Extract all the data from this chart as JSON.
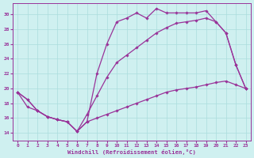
{
  "xlabel": "Windchill (Refroidissement éolien,°C)",
  "background_color": "#cff0f0",
  "grid_color": "#aadddd",
  "line_color": "#993399",
  "xlim": [
    -0.5,
    23.5
  ],
  "ylim": [
    13.0,
    31.5
  ],
  "yticks": [
    14,
    16,
    18,
    20,
    22,
    24,
    26,
    28,
    30
  ],
  "xticks": [
    0,
    1,
    2,
    3,
    4,
    5,
    6,
    7,
    8,
    9,
    10,
    11,
    12,
    13,
    14,
    15,
    16,
    17,
    18,
    19,
    20,
    21,
    22,
    23
  ],
  "series1_x": [
    0,
    1,
    2,
    3,
    4,
    5,
    6,
    7,
    8,
    9,
    10,
    11,
    12,
    13,
    14,
    15,
    16,
    17,
    18,
    19,
    20,
    21,
    22,
    23
  ],
  "series1_y": [
    19.5,
    18.5,
    17.0,
    16.2,
    15.8,
    15.5,
    14.2,
    15.5,
    22.0,
    26.0,
    29.0,
    29.5,
    30.2,
    29.5,
    30.8,
    30.2,
    30.2,
    30.2,
    30.2,
    30.5,
    29.0,
    27.5,
    23.2,
    20.0
  ],
  "series2_x": [
    0,
    1,
    2,
    3,
    4,
    5,
    6,
    7,
    8,
    9,
    10,
    11,
    12,
    13,
    14,
    15,
    16,
    17,
    18,
    19,
    20,
    21,
    22,
    23
  ],
  "series2_y": [
    19.5,
    17.5,
    17.0,
    16.2,
    15.8,
    15.5,
    14.2,
    16.5,
    19.0,
    21.5,
    23.5,
    24.5,
    25.5,
    26.5,
    27.5,
    28.2,
    28.8,
    29.0,
    29.2,
    29.5,
    29.0,
    27.5,
    23.2,
    20.0
  ],
  "series3_x": [
    0,
    1,
    2,
    3,
    4,
    5,
    6,
    7,
    8,
    9,
    10,
    11,
    12,
    13,
    14,
    15,
    16,
    17,
    18,
    19,
    20,
    21,
    22,
    23
  ],
  "series3_y": [
    19.5,
    18.5,
    17.0,
    16.2,
    15.8,
    15.5,
    14.2,
    15.5,
    16.0,
    16.5,
    17.0,
    17.5,
    18.0,
    18.5,
    19.0,
    19.5,
    19.8,
    20.0,
    20.2,
    20.5,
    20.8,
    21.0,
    20.5,
    20.0
  ]
}
